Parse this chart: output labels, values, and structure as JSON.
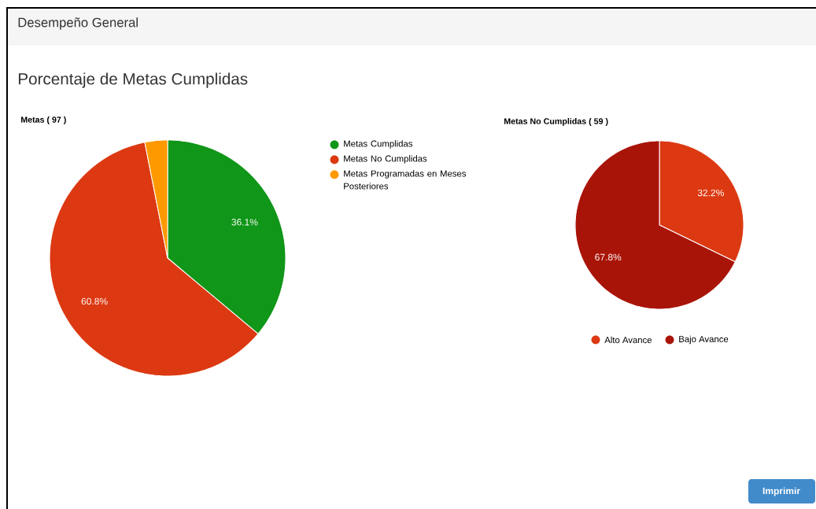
{
  "chart_data": [
    {
      "type": "pie",
      "title": "Metas ( 97 )",
      "annotations": [
        "Desempeño General",
        "Porcentaje de Metas Cumplidas"
      ],
      "categories": [
        "Metas Cumplidas",
        "Metas No Cumplidas",
        "Metas Programadas en Meses Posteriores"
      ],
      "values": [
        36.1,
        60.8,
        3.1
      ],
      "colors": [
        "#109618",
        "#dc3912",
        "#ff9900"
      ],
      "value_labels": [
        "36.1%",
        "60.8%",
        null
      ],
      "legend": "right"
    },
    {
      "type": "pie",
      "title": "Metas No Cumplidas ( 59 )",
      "annotations": [
        "Imprimir"
      ],
      "categories": [
        "Alto Avance",
        "Bajo Avance"
      ],
      "values": [
        32.2,
        67.8
      ],
      "colors": [
        "#dc3912",
        "#a91409"
      ],
      "value_labels": [
        "32.2%",
        "67.8%"
      ],
      "legend": "bottom"
    }
  ]
}
